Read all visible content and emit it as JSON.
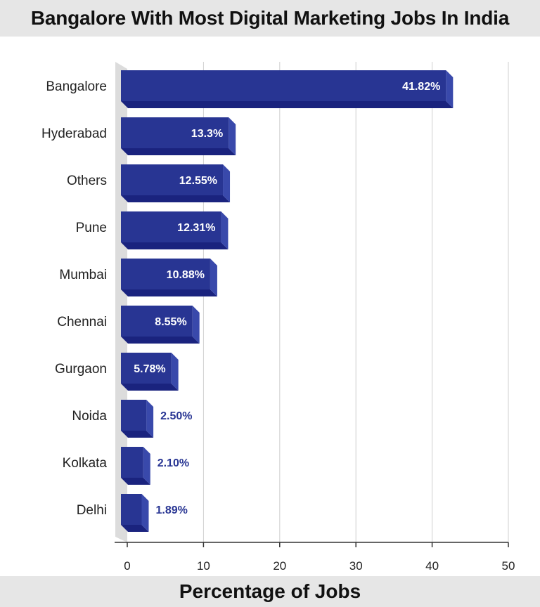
{
  "title": "Bangalore With Most Digital Marketing Jobs In India",
  "chart_data": {
    "type": "bar",
    "orientation": "horizontal",
    "title": "Bangalore With Most Digital Marketing Jobs In India",
    "xlabel": "Percentage of Jobs",
    "ylabel": "",
    "categories": [
      "Bangalore",
      "Hyderabad",
      "Others",
      "Pune",
      "Mumbai",
      "Chennai",
      "Gurgaon",
      "Noida",
      "Kolkata",
      "Delhi"
    ],
    "values": [
      41.82,
      13.3,
      12.55,
      12.31,
      10.88,
      8.55,
      5.78,
      2.5,
      2.1,
      1.89
    ],
    "value_labels": [
      "41.82%",
      "13.3%",
      "12.55%",
      "12.31%",
      "10.88%",
      "8.55%",
      "5.78%",
      "2.50%",
      "2.10%",
      "1.89%"
    ],
    "xlim": [
      0,
      50
    ],
    "xticks": [
      0,
      10,
      20,
      30,
      40,
      50
    ],
    "grid": true,
    "bar_color": "#283593",
    "bar_side_color": "#3949ab",
    "bar_bottom_color": "#1a237e",
    "outside_label_color": "#283593",
    "inside_label_color": "#ffffff"
  }
}
